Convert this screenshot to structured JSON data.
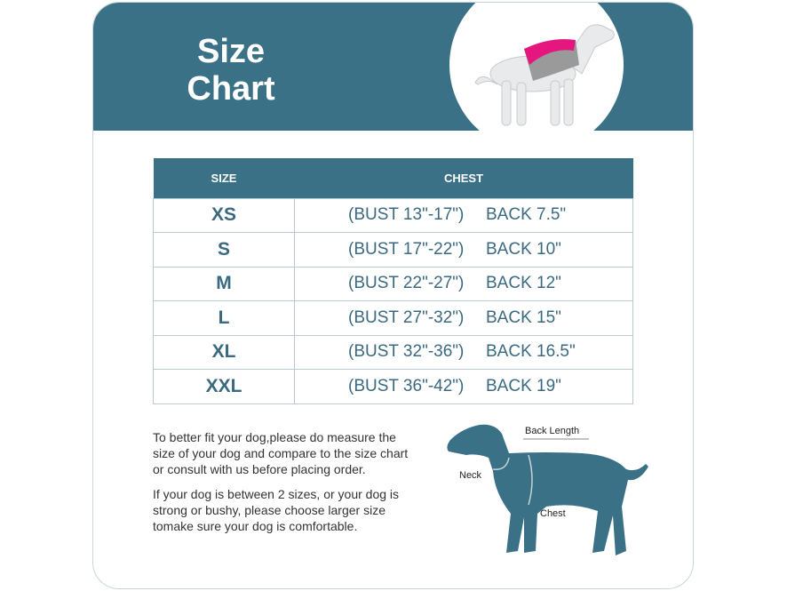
{
  "header": {
    "title_line1": "Size",
    "title_line2": "Chart"
  },
  "table": {
    "headers": [
      "SIZE",
      "CHEST"
    ],
    "rows": [
      {
        "size": "XS",
        "bust": "(BUST 13\"-17\")",
        "back": "BACK 7.5\""
      },
      {
        "size": "S",
        "bust": "(BUST 17\"-22\")",
        "back": "BACK 10\""
      },
      {
        "size": "M",
        "bust": "(BUST 22\"-27\")",
        "back": "BACK 12\""
      },
      {
        "size": "L",
        "bust": "(BUST 27\"-32\")",
        "back": "BACK 15\""
      },
      {
        "size": "XL",
        "bust": "(BUST 32\"-36\")",
        "back": "BACK 16.5\""
      },
      {
        "size": "XXL",
        "bust": "(BUST 36\"-42\")",
        "back": "BACK 19\""
      }
    ]
  },
  "notes": [
    "To better fit your dog,please do measure the size of your dog and compare to the size chart or consult with us before placing order.",
    "If your dog is between 2 sizes, or your dog is strong or bushy, please choose larger size tomake sure your dog is comfortable."
  ],
  "diagram": {
    "back_length": "Back  Length",
    "neck": "Neck",
    "chest": "Chest"
  },
  "colors": {
    "accent": "#3b7186",
    "text": "#3b6a80",
    "vest_pink": "#e5177e",
    "vest_gray": "#9a9a9a"
  }
}
